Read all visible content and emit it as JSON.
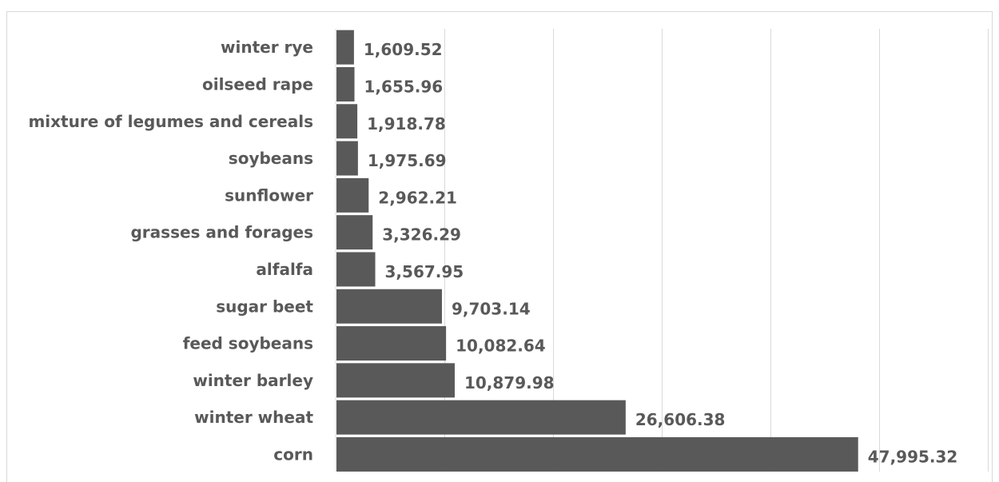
{
  "chart_data": {
    "type": "bar",
    "orientation": "horizontal",
    "categories": [
      "winter rye",
      "oilseed rape",
      "mixture of legumes and cereals",
      "soybeans",
      "sunflower",
      "grasses and forages",
      "alfalfa",
      "sugar beet",
      "feed soybeans",
      "winter barley",
      "winter wheat",
      "corn"
    ],
    "values": [
      1609.52,
      1655.96,
      1918.78,
      1975.69,
      2962.21,
      3326.29,
      3567.95,
      9703.14,
      10082.64,
      10879.98,
      26606.38,
      47995.32
    ],
    "value_labels": [
      "1,609.52",
      "1,655.96",
      "1,918.78",
      "1,975.69",
      "2,962.21",
      "3,326.29",
      "3,567.95",
      "9,703.14",
      "10,082.64",
      "10,879.98",
      "26,606.38",
      "47,995.32"
    ],
    "xlim": [
      0,
      60000
    ],
    "gridlines": [
      10000,
      20000,
      30000,
      40000,
      50000,
      60000
    ],
    "grid": true,
    "legend": false,
    "bar_color": "#595959",
    "grid_color": "#d9d9d9",
    "label_color": "#595959"
  }
}
